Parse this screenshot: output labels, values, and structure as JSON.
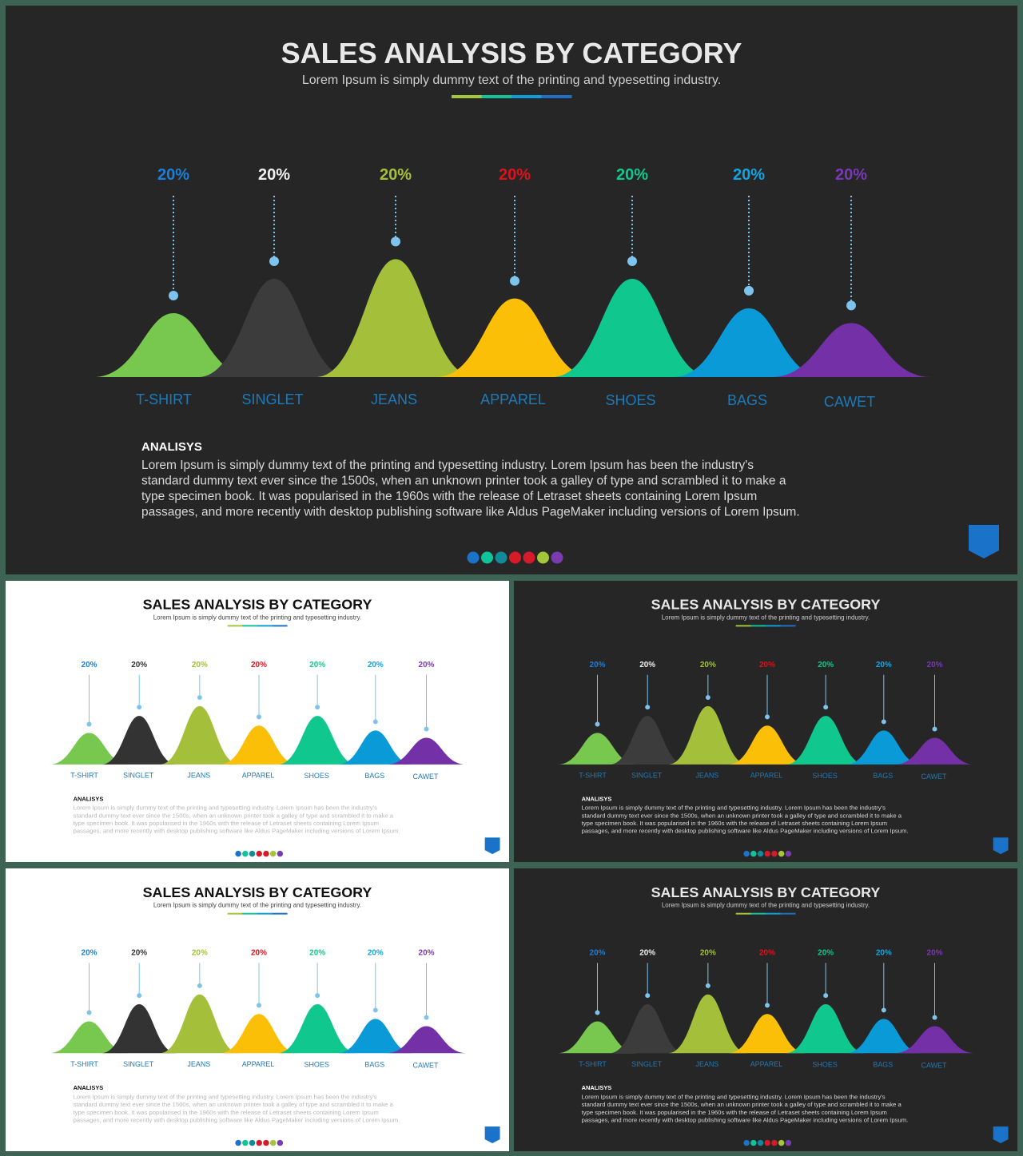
{
  "slide": {
    "title": "SALES ANALYSIS BY CATEGORY",
    "subtitle": "Lorem Ipsum is simply dummy text of the printing and typesetting industry.",
    "analysis_heading": "ANALISYS",
    "analysis_text": "Lorem Ipsum is simply dummy text of the printing and typesetting industry. Lorem Ipsum has been the industry's standard dummy text ever since the 1500s, when an unknown printer took a galley of type and scrambled it to make a type specimen book. It was popularised in the 1960s with the release of Letraset sheets containing Lorem Ipsum passages, and more recently with desktop publishing software like Aldus PageMaker including versions of Lorem Ipsum.",
    "underline_colors": [
      "#a4c639",
      "#10c49a",
      "#0f9ed8",
      "#1f6fc6"
    ],
    "page_dot_colors": [
      "#1a73c8",
      "#10c49a",
      "#128a9a",
      "#d61a2a",
      "#d61a2a",
      "#a4c639",
      "#7a3bb0"
    ],
    "corner_icon_color": "#1a73c8",
    "connector_color": "#7cc4ee"
  },
  "slides": [
    {
      "theme": "dark"
    },
    {
      "theme": "light"
    },
    {
      "theme": "dark"
    },
    {
      "theme": "light"
    },
    {
      "theme": "dark"
    }
  ],
  "chart_data": {
    "type": "area",
    "categories": [
      "T-SHIRT",
      "SINGLET",
      "JEANS",
      "APPAREL",
      "SHOES",
      "BAGS",
      "CAWET"
    ],
    "value_labels": [
      "20%",
      "20%",
      "20%",
      "20%",
      "20%",
      "20%",
      "20%"
    ],
    "values": [
      20,
      20,
      20,
      20,
      20,
      20,
      20
    ],
    "relative_peak_heights": [
      0.65,
      1.0,
      1.2,
      0.8,
      1.0,
      0.7,
      0.55
    ],
    "fill_colors": [
      "#78c850",
      "#3c3c3c",
      "#a4c03a",
      "#fcbf07",
      "#10c88e",
      "#0a9ad8",
      "#7430a6"
    ],
    "fill_colors_light_theme": [
      "#78c850",
      "#333333",
      "#a4c03a",
      "#fcbf07",
      "#10c88e",
      "#0a9ad8",
      "#7430a6"
    ],
    "percent_label_colors_dark": [
      "#1a7fd8",
      "#f0f0f0",
      "#a4c03a",
      "#e0101a",
      "#10c88e",
      "#12a4e0",
      "#7a38b8"
    ],
    "percent_label_colors_light": [
      "#1a7fd8",
      "#333333",
      "#a4c03a",
      "#e0101a",
      "#10c88e",
      "#12a4e0",
      "#7a38b8"
    ],
    "category_label_color": "#1d7ab8",
    "legend": "none",
    "grid": false
  }
}
